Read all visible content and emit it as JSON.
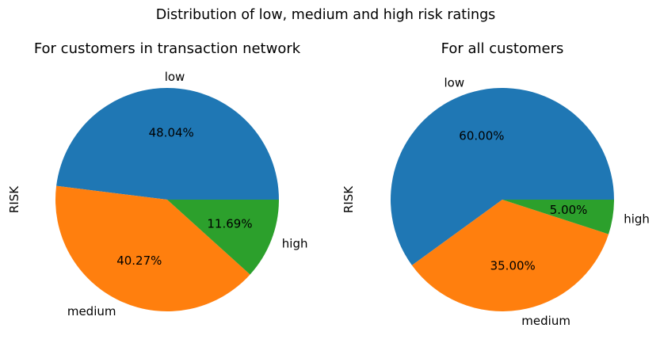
{
  "figure": {
    "suptitle": "Distribution of low, medium and high risk ratings"
  },
  "chart_data": [
    {
      "type": "pie",
      "title": "For customers in transaction network",
      "ylabel": "RISK",
      "labels": [
        "low",
        "medium",
        "high"
      ],
      "values": [
        48.04,
        40.27,
        11.69
      ],
      "pct_labels": [
        "48.04%",
        "40.27%",
        "11.69%"
      ],
      "colors": [
        "#1f77b4",
        "#ff7f0e",
        "#2ca02c"
      ],
      "start_angle_deg": 0,
      "direction": "counterclockwise"
    },
    {
      "type": "pie",
      "title": "For all customers",
      "ylabel": "RISK",
      "labels": [
        "low",
        "medium",
        "high"
      ],
      "values": [
        60.0,
        35.0,
        5.0
      ],
      "pct_labels": [
        "60.00%",
        "35.00%",
        "5.00%"
      ],
      "colors": [
        "#1f77b4",
        "#ff7f0e",
        "#2ca02c"
      ],
      "start_angle_deg": 0,
      "direction": "counterclockwise"
    }
  ]
}
